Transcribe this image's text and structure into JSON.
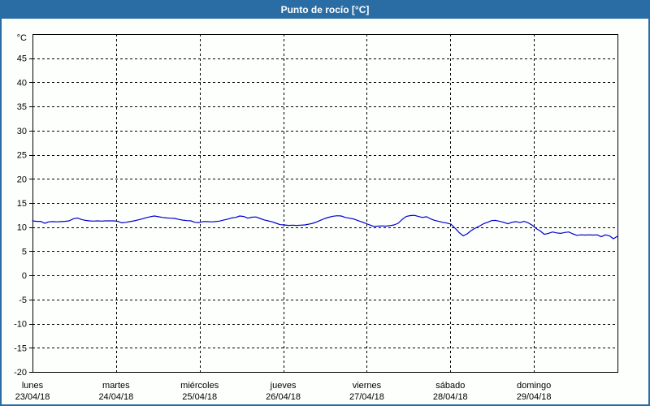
{
  "header": {
    "title": "Punto de rocío [°C]"
  },
  "colors": {
    "frame_border": "#2a6ca4",
    "titlebar_bg": "#2a6ca4",
    "title_text": "#ffffff",
    "line": "#0000cc",
    "plot_border": "#000000",
    "grid": "#000000",
    "label_text": "#000000",
    "plot_bg": "#ffffff"
  },
  "chart_data": {
    "type": "line",
    "title": "Punto de rocío [°C]",
    "y_unit_label": "°C",
    "ylim": [
      -20,
      50
    ],
    "yticks": [
      -20,
      -15,
      -10,
      -5,
      0,
      5,
      10,
      15,
      20,
      25,
      30,
      35,
      40,
      45
    ],
    "grid_style": "dashed",
    "legend": "none",
    "x_axis": {
      "span_days": 7,
      "days": [
        {
          "weekday": "lunes",
          "date": "23/04/18"
        },
        {
          "weekday": "martes",
          "date": "24/04/18"
        },
        {
          "weekday": "miércoles",
          "date": "25/04/18"
        },
        {
          "weekday": "jueves",
          "date": "26/04/18"
        },
        {
          "weekday": "viernes",
          "date": "27/04/18"
        },
        {
          "weekday": "sábado",
          "date": "28/04/18"
        },
        {
          "weekday": "domingo",
          "date": "29/04/18"
        }
      ]
    },
    "series": [
      {
        "name": "Punto de rocío",
        "color": "#0000cc",
        "x_start_day": 0,
        "x_step_day": 0.0486111,
        "values": [
          11.3,
          11.2,
          11.2,
          10.8,
          11.1,
          11.15,
          11.1,
          11.15,
          11.2,
          11.3,
          11.7,
          11.9,
          11.6,
          11.4,
          11.3,
          11.25,
          11.3,
          11.25,
          11.3,
          11.3,
          11.3,
          11.2,
          10.9,
          11.0,
          11.15,
          11.3,
          11.5,
          11.7,
          11.95,
          12.15,
          12.3,
          12.15,
          12.0,
          11.9,
          11.85,
          11.8,
          11.6,
          11.45,
          11.35,
          11.3,
          11.0,
          10.95,
          11.15,
          11.15,
          11.1,
          11.15,
          11.25,
          11.45,
          11.65,
          11.9,
          12.0,
          12.3,
          12.2,
          11.85,
          12.05,
          12.1,
          11.8,
          11.5,
          11.3,
          11.1,
          10.8,
          10.5,
          10.45,
          10.35,
          10.4,
          10.35,
          10.4,
          10.45,
          10.6,
          10.8,
          11.1,
          11.45,
          11.8,
          12.05,
          12.25,
          12.35,
          12.3,
          12.0,
          11.85,
          11.7,
          11.4,
          11.1,
          10.8,
          10.45,
          10.15,
          10.2,
          10.25,
          10.2,
          10.3,
          10.45,
          10.8,
          11.6,
          12.2,
          12.4,
          12.45,
          12.2,
          12.0,
          12.15,
          11.7,
          11.4,
          11.2,
          11.0,
          10.85,
          10.6,
          9.8,
          8.9,
          8.2,
          8.6,
          9.3,
          9.8,
          10.2,
          10.7,
          11.0,
          11.35,
          11.4,
          11.2,
          11.0,
          10.7,
          11.0,
          11.15,
          10.95,
          11.2,
          10.9,
          10.4,
          9.7,
          9.2,
          8.5,
          8.7,
          9.0,
          8.8,
          8.7,
          8.9,
          9.0,
          8.6,
          8.3,
          8.4,
          8.35,
          8.4,
          8.35,
          8.4,
          8.0,
          8.4,
          8.2,
          7.6,
          8.1
        ]
      }
    ]
  }
}
